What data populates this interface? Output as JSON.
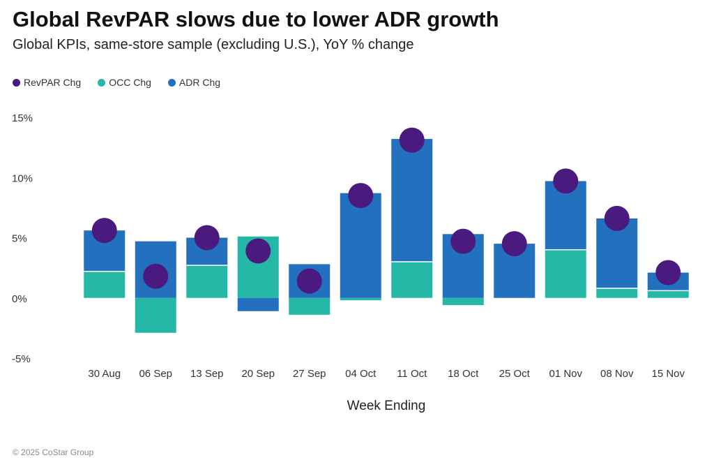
{
  "header": {
    "title": "Global RevPAR slows due to lower ADR growth",
    "subtitle": "Global KPIs, same-store sample (excluding U.S.), YoY % change"
  },
  "footer": {
    "copyright": "© 2025 CoStar Group"
  },
  "colors": {
    "revpar": "#4a1a7f",
    "occ": "#26b8a6",
    "adr": "#2370be"
  },
  "chart_data": {
    "type": "bar",
    "stacked": true,
    "title": "Global RevPAR slows due to lower ADR growth",
    "subtitle": "Global KPIs, same-store sample (excluding U.S.), YoY % change",
    "xlabel": "Week Ending",
    "ylabel": "",
    "ylim": [
      -5,
      15
    ],
    "yticks": [
      -5,
      0,
      5,
      10,
      15
    ],
    "ytick_labels": [
      "-5%",
      "0%",
      "5%",
      "10%",
      "15%"
    ],
    "legend_position": "top-left",
    "categories": [
      "30 Aug",
      "06 Sep",
      "13 Sep",
      "20 Sep",
      "27 Sep",
      "04 Oct",
      "11 Oct",
      "18 Oct",
      "25 Oct",
      "01 Nov",
      "08 Nov",
      "15 Nov"
    ],
    "series": [
      {
        "name": "RevPAR Chg",
        "type": "point",
        "values": [
          5.6,
          1.8,
          5.0,
          3.9,
          1.4,
          8.5,
          13.1,
          4.7,
          4.5,
          9.7,
          6.6,
          2.1
        ]
      },
      {
        "name": "OCC Chg",
        "type": "bar",
        "values": [
          2.2,
          -2.9,
          2.7,
          5.1,
          -1.4,
          -0.2,
          3.0,
          -0.6,
          0.0,
          4.0,
          0.8,
          0.6
        ]
      },
      {
        "name": "ADR Chg",
        "type": "bar",
        "values": [
          3.4,
          4.7,
          2.3,
          -1.1,
          2.8,
          8.7,
          10.2,
          5.3,
          4.5,
          5.7,
          5.8,
          1.5
        ]
      }
    ]
  }
}
